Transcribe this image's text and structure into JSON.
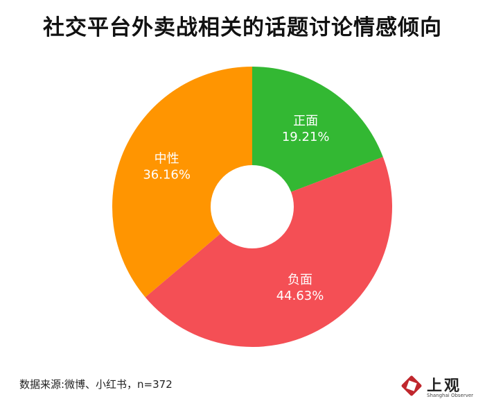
{
  "title": "社交平台外卖战相关的话题讨论情感倾向",
  "footnote": "数据来源:微博、小红书，n=372",
  "logo": {
    "text": "上观",
    "subtext": "Shanghai Observer",
    "color": "#c0272d"
  },
  "chart_data": {
    "type": "pie",
    "donut": true,
    "title": "社交平台外卖战相关的话题讨论情感倾向",
    "slices": [
      {
        "label": "正面",
        "value": 19.21,
        "display": "19.21%",
        "color": "#33b833"
      },
      {
        "label": "负面",
        "value": 44.63,
        "display": "44.63%",
        "color": "#f44f55"
      },
      {
        "label": "中性",
        "value": 36.16,
        "display": "36.16%",
        "color": "#ff9501"
      }
    ],
    "start": "12 o'clock",
    "direction": "clockwise"
  }
}
